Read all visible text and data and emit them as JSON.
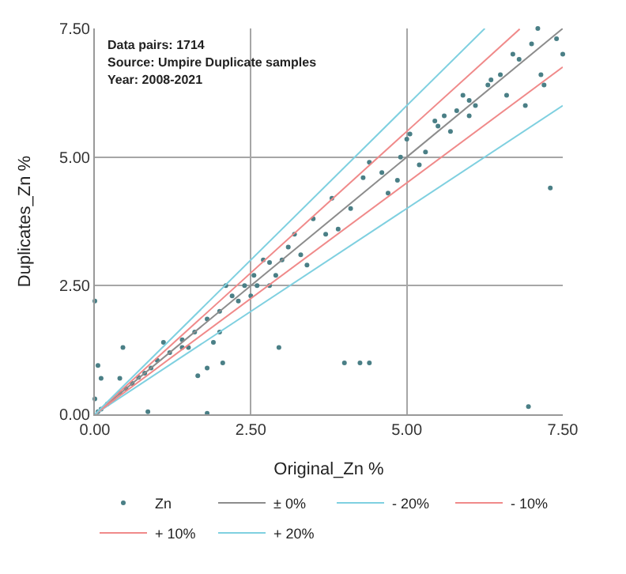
{
  "chart_data": {
    "type": "scatter",
    "xlabel": "Original_Zn %",
    "ylabel": "Duplicates_Zn %",
    "annotations": [
      "Data pairs: 1714",
      "Source: Umpire Duplicate samples",
      "Year: 2008-2021"
    ],
    "xlim": [
      0,
      7.5
    ],
    "ylim": [
      0,
      7.5
    ],
    "xticks": [
      {
        "value": 0,
        "label": "0.00"
      },
      {
        "value": 2.5,
        "label": "2.50"
      },
      {
        "value": 5,
        "label": "5.00"
      },
      {
        "value": 7.5,
        "label": "7.50"
      }
    ],
    "yticks": [
      {
        "value": 0,
        "label": "0.00"
      },
      {
        "value": 2.5,
        "label": "2.50"
      },
      {
        "value": 5,
        "label": "5.00"
      },
      {
        "value": 7.5,
        "label": "7.50"
      }
    ],
    "grid": true,
    "legend": "bottom",
    "series": [
      {
        "name": "Zn",
        "marker": "circle",
        "color": "#4a7f86",
        "x": [
          0.0,
          0.05,
          0.1,
          0.45,
          0.4,
          0.85,
          1.8,
          1.8,
          1.65,
          2.05,
          2.95,
          4.0,
          4.25,
          4.4,
          6.95,
          7.3,
          1.4,
          1.9,
          2.0,
          0.0,
          5.0,
          5.05,
          4.6,
          4.85,
          4.3,
          5.2,
          5.5,
          5.8,
          6.0,
          6.3,
          6.5,
          6.8,
          7.0,
          7.1,
          7.4,
          7.5,
          6.9,
          7.15,
          6.7,
          6.35,
          6.1,
          5.7,
          5.3,
          5.45,
          5.9,
          6.6,
          7.2,
          3.8,
          3.5,
          3.2,
          3.0,
          3.4,
          3.7,
          4.1,
          3.9,
          2.7,
          2.6,
          2.4,
          2.5,
          2.3,
          2.2,
          2.0,
          1.8,
          1.6,
          1.4,
          1.2,
          1.0,
          0.9,
          0.8,
          0.7,
          0.6,
          0.5,
          0.4,
          0.3,
          0.2,
          0.1,
          0.05,
          1.1,
          2.1,
          2.55,
          2.8,
          3.1,
          4.4,
          4.9,
          6.0,
          5.6,
          4.7,
          3.3,
          2.9,
          1.5,
          2.8
        ],
        "values": [
          2.2,
          0.95,
          0.7,
          1.3,
          0.7,
          0.05,
          0.02,
          0.9,
          0.75,
          1.0,
          1.3,
          1.0,
          1.0,
          1.0,
          0.15,
          4.4,
          1.3,
          1.4,
          1.6,
          0.3,
          5.35,
          5.45,
          4.7,
          4.55,
          4.6,
          4.85,
          5.6,
          5.9,
          6.1,
          6.4,
          6.6,
          6.9,
          7.2,
          7.5,
          7.3,
          7.0,
          6.0,
          6.6,
          7.0,
          6.5,
          6.0,
          5.5,
          5.1,
          5.7,
          6.2,
          6.2,
          6.4,
          4.2,
          3.8,
          3.5,
          3.0,
          2.9,
          3.5,
          4.0,
          3.6,
          3.0,
          2.5,
          2.5,
          2.3,
          2.2,
          2.3,
          2.0,
          1.85,
          1.6,
          1.45,
          1.2,
          1.05,
          0.9,
          0.8,
          0.72,
          0.6,
          0.5,
          0.42,
          0.3,
          0.2,
          0.1,
          0.05,
          1.4,
          2.5,
          2.7,
          2.95,
          3.25,
          4.9,
          5.0,
          5.8,
          5.8,
          4.3,
          3.1,
          2.7,
          1.3,
          2.5
        ]
      },
      {
        "name": "± 0%",
        "type": "line",
        "color": "#8c8c8c",
        "x": [
          0,
          7.5
        ],
        "values": [
          0,
          7.5
        ]
      },
      {
        "name": "- 20%",
        "type": "line",
        "color": "#7fd0e0",
        "x": [
          0,
          7.5
        ],
        "values": [
          0,
          6
        ]
      },
      {
        "name": "- 10%",
        "type": "line",
        "color": "#f08a8a",
        "x": [
          0,
          7.5
        ],
        "values": [
          0,
          6.75
        ]
      },
      {
        "name": "+ 10%",
        "type": "line",
        "color": "#f08a8a",
        "x": [
          0,
          6.81
        ],
        "values": [
          0,
          7.49
        ]
      },
      {
        "name": "+ 20%",
        "type": "line",
        "color": "#7fd0e0",
        "x": [
          0,
          6.25
        ],
        "values": [
          0,
          7.5
        ]
      }
    ]
  }
}
